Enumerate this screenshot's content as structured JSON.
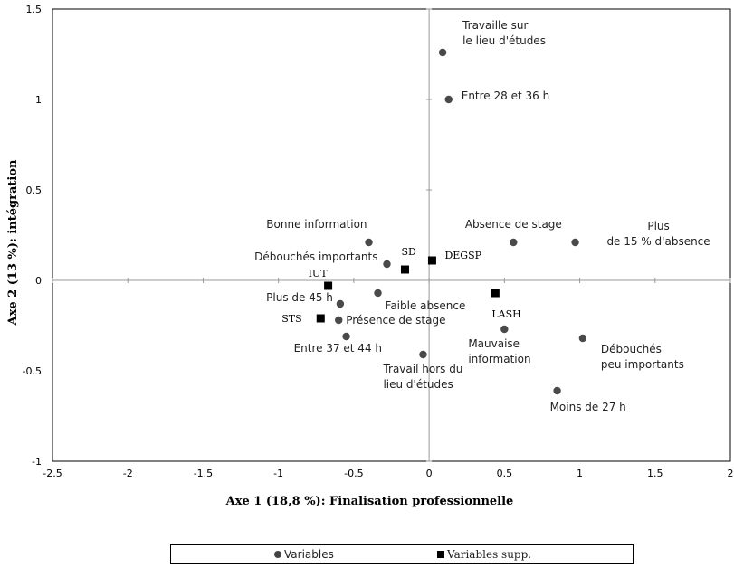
{
  "chart_data": {
    "type": "scatter",
    "xlabel": "Axe 1 (18,8 %): Finalisation professionnelle",
    "ylabel": "Axe 2 (13 %): intégration",
    "xlim": [
      -2.5,
      2
    ],
    "ylim": [
      -1,
      1.5
    ],
    "x_ticks": [
      "-2.5",
      "-2",
      "-1.5",
      "-1",
      "-0.5",
      "0",
      "0.5",
      "1",
      "1.5",
      "2"
    ],
    "y_ticks": [
      "1.5",
      "1",
      "0.5",
      "0",
      "-0.5",
      "-1"
    ],
    "series": [
      {
        "name": "Variables",
        "marker": "circle",
        "color": "#4a4a4a",
        "points": [
          {
            "label": "Travaille sur\nle lieu d'études",
            "x": 0.09,
            "y": 1.26
          },
          {
            "label": "Entre 28 et 36 h",
            "x": 0.13,
            "y": 1.0
          },
          {
            "label": "Bonne information",
            "x": -0.4,
            "y": 0.21
          },
          {
            "label": "Débouchés importants",
            "x": -0.28,
            "y": 0.09
          },
          {
            "label": "Absence de stage",
            "x": 0.56,
            "y": 0.21
          },
          {
            "label": "Plus\nde 15 % d'absence",
            "x": 0.97,
            "y": 0.21
          },
          {
            "label": "Plus de 45 h",
            "x": -0.59,
            "y": -0.13
          },
          {
            "label": "Faible absence",
            "x": -0.34,
            "y": -0.07
          },
          {
            "label": "Présence de stage",
            "x": -0.6,
            "y": -0.22
          },
          {
            "label": "Entre 37 et 44 h",
            "x": -0.55,
            "y": -0.31
          },
          {
            "label": "Travail hors du\nlieu d'études",
            "x": -0.04,
            "y": -0.41
          },
          {
            "label": "Mauvaise\ninformation",
            "x": 0.5,
            "y": -0.27
          },
          {
            "label": "Débouchés\npeu importants",
            "x": 1.02,
            "y": -0.32
          },
          {
            "label": "Moins de 27 h",
            "x": 0.85,
            "y": -0.61
          }
        ]
      },
      {
        "name": "Variables supp.",
        "marker": "square",
        "color": "#000000",
        "points": [
          {
            "label": "SD",
            "x": -0.16,
            "y": 0.06
          },
          {
            "label": "DEGSP",
            "x": 0.02,
            "y": 0.11
          },
          {
            "label": "IUT",
            "x": -0.67,
            "y": -0.03
          },
          {
            "label": "STS",
            "x": -0.72,
            "y": -0.21
          },
          {
            "label": "LASH",
            "x": 0.44,
            "y": -0.07
          }
        ]
      }
    ],
    "legend": {
      "placement": "bottom",
      "items": [
        "Variables",
        "Variables supp."
      ]
    },
    "grid": false
  }
}
